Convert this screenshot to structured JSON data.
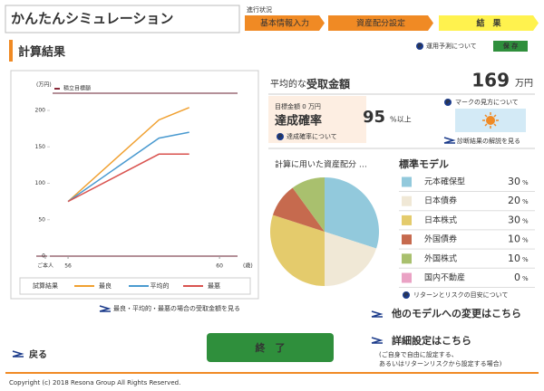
{
  "header": {
    "title": "かんたんシミュレーション",
    "progress_label": "進行状況",
    "steps": [
      "基本情報入力",
      "資産配分設定",
      "結　果"
    ]
  },
  "section_title": "計算結果",
  "forecast_link": "運用予測について",
  "save_button": "保 存",
  "chart_data": [
    {
      "type": "line",
      "y_label": "(万円)",
      "x_label": "(歳)",
      "target_legend": "積立目標額",
      "legend_title": "試算結果",
      "x": [
        56,
        58.4,
        59.2
      ],
      "series": [
        {
          "name": "最良",
          "color": "#f0a030",
          "values": [
            75,
            187,
            204
          ]
        },
        {
          "name": "平均的",
          "color": "#4a9ad0",
          "values": [
            75,
            162,
            170
          ]
        },
        {
          "name": "最悪",
          "color": "#d9534f",
          "values": [
            75,
            140,
            140
          ]
        }
      ],
      "xlim": [
        55.4,
        60.5
      ],
      "ylim": [
        0,
        200
      ],
      "xticks": [
        {
          "value": 55.4,
          "label": "ご本人"
        },
        56,
        60
      ],
      "yticks": [
        0,
        50,
        100,
        150,
        200
      ]
    },
    {
      "type": "pie",
      "title": "計算に用いた資産配分 …",
      "legend_title": "標準モデル",
      "unit": "%",
      "categories": [
        "元本確保型",
        "日本債券",
        "日本株式",
        "外国債券",
        "外国株式",
        "国内不動産"
      ],
      "values": [
        30,
        20,
        30,
        10,
        10,
        0
      ],
      "colors": [
        "#92c9dc",
        "#f0e8d6",
        "#e4cb6c",
        "#c66a4e",
        "#a9c06e",
        "#eaa2c4"
      ]
    }
  ],
  "chart_link": "最良・平均的・最悪の場合の受取金額を見る",
  "result": {
    "label_prefix": "平均的な",
    "label_main": "受取金額",
    "amount": 169,
    "amount_unit": "万円",
    "target": "目標金額 0 万円",
    "achievement_label": "達成確率",
    "achievement_link": "達成確率について",
    "achievement": 95,
    "achievement_unit": "%以上",
    "mark_link": "マークの見方について",
    "diagnosis_link": "診断結果の解説を見る"
  },
  "risk_link": "リターンとリスクの目安について",
  "other_model_link": "他のモデルへの変更はこちら",
  "detail_link": "詳細設定はこちら",
  "detail_notes": [
    "(ご自身で自由に設定する、",
    "あるいはリターンリスクから設定する場合)"
  ],
  "back_link": "戻る",
  "end_button": "終　了",
  "copyright": "Copyright (c) 2018 Resona Group All Rights Reserved."
}
